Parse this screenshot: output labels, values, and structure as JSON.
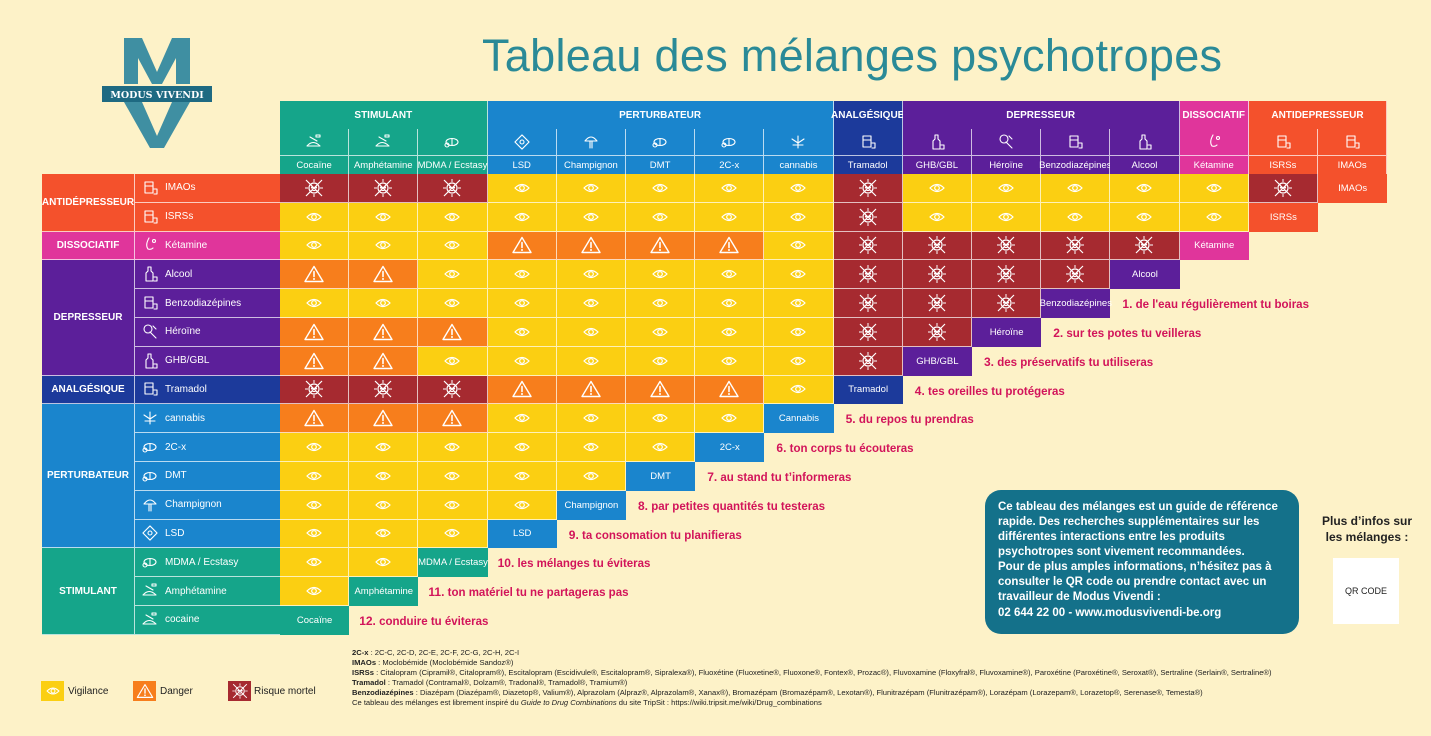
{
  "title": "Tableau des mélanges psychotropes",
  "logo_text": "MODUS VIVENDI",
  "colors": {
    "background": "#fdf2c8",
    "stimulant": "#15a58a",
    "perturbateur": "#1a85cd",
    "analgesique": "#1c3a9b",
    "depresseur": "#5c1f9a",
    "dissociatif": "#e0359b",
    "antidepresseur": "#f4512c",
    "vigilance": "#fbcf12",
    "danger": "#f77e1c",
    "risque": "#a62a30",
    "title": "#2a8a97",
    "tip": "#d2145a"
  },
  "categories": [
    {
      "key": "stimulant",
      "label": "STIMULANT",
      "span": 3
    },
    {
      "key": "perturbateur",
      "label": "PERTURBATEUR",
      "span": 5
    },
    {
      "key": "analgesique",
      "label": "ANALGÉSIQUE",
      "span": 1
    },
    {
      "key": "depresseur",
      "label": "DEPRESSEUR",
      "span": 4
    },
    {
      "key": "dissociatif",
      "label": "DISSOCIATIF",
      "span": 1
    },
    {
      "key": "antidepresseur",
      "label": "ANTIDEPRESSEUR",
      "span": 2
    }
  ],
  "columns": [
    {
      "name": "Cocaïne",
      "cat": "stimulant",
      "icon": "powder-icon"
    },
    {
      "name": "Amphétamine",
      "cat": "stimulant",
      "icon": "powder-icon"
    },
    {
      "name": "MDMA / Ecstasy",
      "cat": "stimulant",
      "icon": "pill-icon"
    },
    {
      "name": "LSD",
      "cat": "perturbateur",
      "icon": "blotter-icon"
    },
    {
      "name": "Champignon",
      "cat": "perturbateur",
      "icon": "mushroom-icon"
    },
    {
      "name": "DMT",
      "cat": "perturbateur",
      "icon": "pill-icon"
    },
    {
      "name": "2C-x",
      "cat": "perturbateur",
      "icon": "pill-icon"
    },
    {
      "name": "cannabis",
      "cat": "perturbateur",
      "icon": "leaf-icon"
    },
    {
      "name": "Tramadol",
      "cat": "analgesique",
      "icon": "medicine-icon"
    },
    {
      "name": "GHB/GBL",
      "cat": "depresseur",
      "icon": "bottle-icon"
    },
    {
      "name": "Héroïne",
      "cat": "depresseur",
      "icon": "spoon-icon"
    },
    {
      "name": "Benzodiazépines",
      "cat": "depresseur",
      "icon": "medicine-icon"
    },
    {
      "name": "Alcool",
      "cat": "depresseur",
      "icon": "bottle-icon"
    },
    {
      "name": "Kétamine",
      "cat": "dissociatif",
      "icon": "nose-icon"
    },
    {
      "name": "ISRSs",
      "cat": "antidepresseur",
      "icon": "medicine-icon"
    },
    {
      "name": "IMAOs",
      "cat": "antidepresseur",
      "icon": "medicine-icon"
    }
  ],
  "row_groups": [
    {
      "label": "ANTIDÉPRESSEUR",
      "cat": "antidepresseur",
      "count": 2
    },
    {
      "label": "DISSOCIATIF",
      "cat": "dissociatif",
      "count": 1
    },
    {
      "label": "DEPRESSEUR",
      "cat": "depresseur",
      "count": 4
    },
    {
      "label": "ANALGÉSIQUE",
      "cat": "analgesique",
      "count": 1
    },
    {
      "label": "PERTURBATEUR",
      "cat": "perturbateur",
      "count": 5
    },
    {
      "label": "STIMULANT",
      "cat": "stimulant",
      "count": 3
    }
  ],
  "rows": [
    {
      "name": "IMAOs",
      "cat": "antidepresseur",
      "icon": "medicine-icon",
      "cells": "RRRVVVVVRVVVVVR",
      "diag": "IMAOs"
    },
    {
      "name": "ISRSs",
      "cat": "antidepresseur",
      "icon": "medicine-icon",
      "cells": "VVVVVVVVRVVVVV",
      "diag": "ISRSs"
    },
    {
      "name": "Kétamine",
      "cat": "dissociatif",
      "icon": "nose-icon",
      "cells": "VVVDDDDVRRRRR",
      "diag": "Kétamine"
    },
    {
      "name": "Alcool",
      "cat": "depresseur",
      "icon": "bottle-icon",
      "cells": "DDVVVVVVRRRR",
      "diag": "Alcool"
    },
    {
      "name": "Benzodiazépines",
      "cat": "depresseur",
      "icon": "medicine-icon",
      "cells": "VVVVVVVVRRR",
      "diag": "Benzodiazépines"
    },
    {
      "name": "Héroïne",
      "cat": "depresseur",
      "icon": "spoon-icon",
      "cells": "DDDVVVVVRR",
      "diag": "Héroïne"
    },
    {
      "name": "GHB/GBL",
      "cat": "depresseur",
      "icon": "bottle-icon",
      "cells": "DDVVVVVVR",
      "diag": "GHB/GBL"
    },
    {
      "name": "Tramadol",
      "cat": "analgesique",
      "icon": "medicine-icon",
      "cells": "RRRDDDDV",
      "diag": "Tramadol"
    },
    {
      "name": "cannabis",
      "cat": "perturbateur",
      "icon": "leaf-icon",
      "cells": "DDDVVVV",
      "diag": "Cannabis"
    },
    {
      "name": "2C-x",
      "cat": "perturbateur",
      "icon": "pill-icon",
      "cells": "VVVVVV",
      "diag": "2C-x"
    },
    {
      "name": "DMT",
      "cat": "perturbateur",
      "icon": "pill-icon",
      "cells": "VVVVV",
      "diag": "DMT"
    },
    {
      "name": "Champignon",
      "cat": "perturbateur",
      "icon": "mushroom-icon",
      "cells": "VVVV",
      "diag": "Champignon"
    },
    {
      "name": "LSD",
      "cat": "perturbateur",
      "icon": "blotter-icon",
      "cells": "VVV",
      "diag": "LSD"
    },
    {
      "name": "MDMA / Ecstasy",
      "cat": "stimulant",
      "icon": "pill-icon",
      "cells": "VV",
      "diag": "MDMA / Ecstasy"
    },
    {
      "name": "Amphétamine",
      "cat": "stimulant",
      "icon": "powder-icon",
      "cells": "V",
      "diag": "Amphétamine"
    },
    {
      "name": "cocaine",
      "cat": "stimulant",
      "icon": "powder-icon",
      "cells": "",
      "diag": "Cocaïne"
    }
  ],
  "tips": [
    {
      "num": "1.",
      "text": "de l'eau régulièrement tu boiras"
    },
    {
      "num": "2.",
      "text": "sur tes potes tu veilleras"
    },
    {
      "num": "3.",
      "text": "des préservatifs tu utiliseras"
    },
    {
      "num": "4.",
      "text": "tes oreilles tu protégeras"
    },
    {
      "num": "5.",
      "text": "du repos tu prendras"
    },
    {
      "num": "6.",
      "text": "ton corps tu écouteras"
    },
    {
      "num": "7.",
      "text": "au stand tu t’informeras"
    },
    {
      "num": "8.",
      "text": "par petites quantités tu testeras"
    },
    {
      "num": "9.",
      "text": "ta consomation tu planifieras"
    },
    {
      "num": "10.",
      "text": "les mélanges tu éviteras"
    },
    {
      "num": "11.",
      "text": "ton matériel tu ne partageras pas"
    },
    {
      "num": "12.",
      "text": "conduire tu éviteras"
    }
  ],
  "info": {
    "para1": "Ce tableau des mélanges est un guide de référence rapide. Des recherches supplémentaires sur les différentes interactions entre les produits psychotropes sont vivement recommandées.",
    "para2": "Pour de plus amples informations, n’hésitez pas à consulter le QR code ou prendre contact avec un travailleur de Modus Vivendi :",
    "contact": "02 644 22 00 - www.modusvivendi-be.org"
  },
  "more_info": "Plus d’infos sur les mélanges :",
  "qr_label": "QR CODE",
  "legend": [
    {
      "key": "V",
      "label": "Vigilance"
    },
    {
      "key": "D",
      "label": "Danger"
    },
    {
      "key": "R",
      "label": "Risque mortel"
    }
  ],
  "footnotes": [
    {
      "term": "2C-x",
      "text": " : 2C-C, 2C-D, 2C-E, 2C-F, 2C-G, 2C-H, 2C-I"
    },
    {
      "term": "IMAOs",
      "text": " : Moclobémide (Moclobémide Sandoz®)"
    },
    {
      "term": "ISRSs",
      "text": " : Citalopram (Cipramil®, Citalopram®), Escitalopram (Escidivule®, Escitalopram®, Sipralexa®), Fluoxétine (Fluoxetine®, Fluoxone®, Fontex®, Prozac®), Fluvoxamine (Floxyfral®, Fluvoxamine®), Paroxétine (Paroxétine®, Seroxat®), Sertraline (Serlain®, Sertraline®)"
    },
    {
      "term": "Tramadol",
      "text": " : Tramadol (Contramal®, Dolzam®, Tradonal®, Tramadol®, Tramium®)"
    },
    {
      "term": "Benzodiazépines",
      "text": " : Diazépam (Diazépam®, Diazetop®, Valium®), Alprazolam (Alpraz®, Alprazolam®, Xanax®), Bromazépam (Bromazépam®, Lexotan®), Flunitrazépam (Flunitrazépam®), Lorazépam (Lorazepam®, Lorazetop®, Serenase®, Temesta®)"
    }
  ],
  "credit": {
    "before": "Ce tableau des mélanges est librement inspiré du ",
    "guide": "Guide to Drug Combinations",
    "after": " du site TripSit : https://wiki.tripsit.me/wiki/Drug_combinations"
  }
}
